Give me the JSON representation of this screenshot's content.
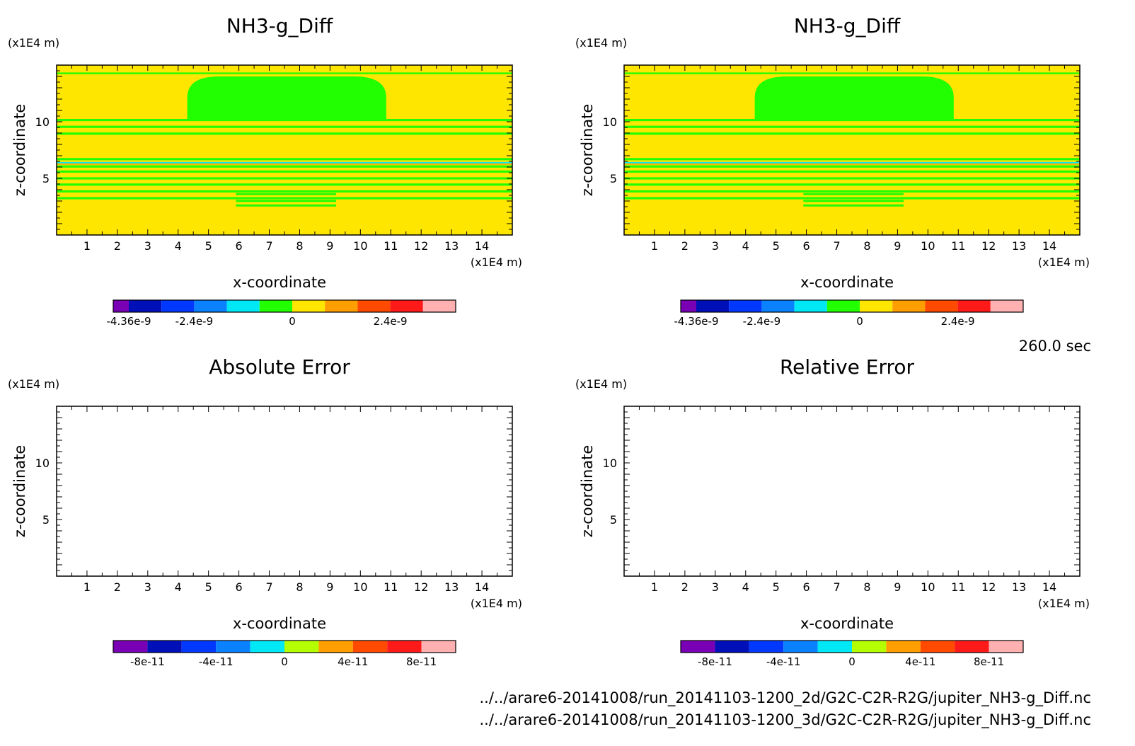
{
  "time_label": "260.0 sec",
  "file_paths": [
    "../../arare6-20141008/run_20141103-1200_2d/G2C-C2R-R2G/jupiter_NH3-g_Diff.nc",
    "../../arare6-20141008/run_20141103-1200_3d/G2C-C2R-R2G/jupiter_NH3-g_Diff.nc"
  ],
  "colors": {
    "yellow": "#ffe600",
    "green": "#22ff00",
    "scale1": [
      "#7a00b5",
      "#0010b8",
      "#0038ff",
      "#0a82ff",
      "#00e8f5",
      "#22ff00",
      "#ffe600",
      "#ff9e00",
      "#ff4a00",
      "#ff1a1a",
      "#ffb0b0"
    ],
    "scale2": [
      "#7a00b5",
      "#0010b8",
      "#0038ff",
      "#0a82ff",
      "#00e8f5",
      "#b4ff00",
      "#ff9e00",
      "#ff4a00",
      "#ff1a1a",
      "#ffb0b0"
    ]
  },
  "chart_data": [
    {
      "id": "top-left",
      "type": "heatmap",
      "title": "NH3-g_Diff",
      "xlabel": "x-coordinate",
      "ylabel": "z-coordinate",
      "x_unit": "(x1E4 m)",
      "y_unit": "(x1E4 m)",
      "xlim": [
        0,
        15
      ],
      "ylim": [
        0,
        15
      ],
      "xticks": [
        1,
        2,
        3,
        4,
        5,
        6,
        7,
        8,
        9,
        10,
        11,
        12,
        13,
        14
      ],
      "yticks": [
        5,
        10
      ],
      "filled": true,
      "colorbar": {
        "scale": "scale1",
        "labels": [
          "-4.36e-9",
          "-2.4e-9",
          "0",
          "2.4e-9"
        ]
      }
    },
    {
      "id": "top-right",
      "type": "heatmap",
      "title": "NH3-g_Diff",
      "xlabel": "x-coordinate",
      "ylabel": "z-coordinate",
      "x_unit": "(x1E4 m)",
      "y_unit": "(x1E4 m)",
      "xlim": [
        0,
        15
      ],
      "ylim": [
        0,
        15
      ],
      "xticks": [
        1,
        2,
        3,
        4,
        5,
        6,
        7,
        8,
        9,
        10,
        11,
        12,
        13,
        14
      ],
      "yticks": [
        5,
        10
      ],
      "filled": true,
      "colorbar": {
        "scale": "scale1",
        "labels": [
          "-4.36e-9",
          "-2.4e-9",
          "0",
          "2.4e-9"
        ]
      }
    },
    {
      "id": "bottom-left",
      "type": "heatmap",
      "title": "Absolute Error",
      "xlabel": "x-coordinate",
      "ylabel": "z-coordinate",
      "x_unit": "(x1E4 m)",
      "y_unit": "(x1E4 m)",
      "xlim": [
        0,
        15
      ],
      "ylim": [
        0,
        15
      ],
      "xticks": [
        1,
        2,
        3,
        4,
        5,
        6,
        7,
        8,
        9,
        10,
        11,
        12,
        13,
        14
      ],
      "yticks": [
        5,
        10
      ],
      "filled": false,
      "colorbar": {
        "scale": "scale2",
        "labels": [
          "-8e-11",
          "-4e-11",
          "0",
          "4e-11",
          "8e-11"
        ]
      }
    },
    {
      "id": "bottom-right",
      "type": "heatmap",
      "title": "Relative Error",
      "xlabel": "x-coordinate",
      "ylabel": "z-coordinate",
      "x_unit": "(x1E4 m)",
      "y_unit": "(x1E4 m)",
      "xlim": [
        0,
        15
      ],
      "ylim": [
        0,
        15
      ],
      "xticks": [
        1,
        2,
        3,
        4,
        5,
        6,
        7,
        8,
        9,
        10,
        11,
        12,
        13,
        14
      ],
      "yticks": [
        5,
        10
      ],
      "filled": false,
      "colorbar": {
        "scale": "scale2",
        "labels": [
          "-8e-11",
          "-4e-11",
          "0",
          "4e-11",
          "8e-11"
        ]
      }
    }
  ]
}
